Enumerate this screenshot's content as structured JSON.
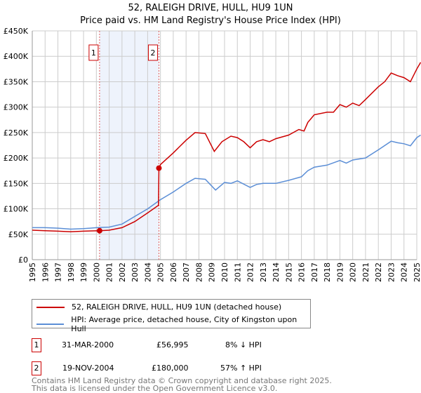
{
  "chart_data": {
    "type": "line",
    "title": "52, RALEIGH DRIVE, HULL, HU9 1UN",
    "subtitle": "Price paid vs. HM Land Registry's House Price Index (HPI)",
    "xlim": [
      1995,
      2025
    ],
    "ylim": [
      0,
      450000
    ],
    "x_ticks": [
      "1995",
      "1996",
      "1997",
      "1998",
      "1999",
      "2000",
      "2001",
      "2002",
      "2003",
      "2004",
      "2005",
      "2006",
      "2007",
      "2008",
      "2009",
      "2010",
      "2011",
      "2012",
      "2013",
      "2014",
      "2015",
      "2016",
      "2017",
      "2018",
      "2019",
      "2020",
      "2021",
      "2022",
      "2023",
      "2024",
      "2025"
    ],
    "y_ticks": [
      {
        "v": 0,
        "l": "£0"
      },
      {
        "v": 50000,
        "l": "£50K"
      },
      {
        "v": 100000,
        "l": "£100K"
      },
      {
        "v": 150000,
        "l": "£150K"
      },
      {
        "v": 200000,
        "l": "£200K"
      },
      {
        "v": 250000,
        "l": "£250K"
      },
      {
        "v": 300000,
        "l": "£300K"
      },
      {
        "v": 350000,
        "l": "£350K"
      },
      {
        "v": 400000,
        "l": "£400K"
      },
      {
        "v": 450000,
        "l": "£450K"
      }
    ],
    "grid": true,
    "shaded_range": [
      2000.25,
      2004.88
    ],
    "series": [
      {
        "name": "52, RALEIGH DRIVE, HULL, HU9 1UN (detached house)",
        "color": "#cc0000",
        "x": [
          1995,
          1996,
          1997,
          1998,
          1999,
          2000.25,
          2001,
          2002,
          2003,
          2004,
          2004.85,
          2004.88,
          2005,
          2006,
          2007,
          2007.7,
          2008.5,
          2009.2,
          2009.8,
          2010.5,
          2011,
          2011.5,
          2012,
          2012.5,
          2013,
          2013.5,
          2014,
          2015,
          2015.8,
          2016.2,
          2016.5,
          2017,
          2018,
          2018.5,
          2019,
          2019.5,
          2020,
          2020.5,
          2021,
          2022,
          2022.5,
          2023,
          2023.5,
          2024,
          2024.5,
          2025,
          2025.3
        ],
        "y": [
          58000,
          57000,
          56000,
          55000,
          56000,
          56995,
          58000,
          63000,
          75000,
          92000,
          107000,
          180000,
          187000,
          210000,
          235000,
          250000,
          248000,
          213000,
          232000,
          243000,
          240000,
          232000,
          220000,
          232000,
          236000,
          232000,
          238000,
          245000,
          256000,
          253000,
          270000,
          285000,
          290000,
          290000,
          305000,
          300000,
          308000,
          303000,
          315000,
          340000,
          350000,
          367000,
          362000,
          358000,
          350000,
          375000,
          388000
        ]
      },
      {
        "name": "HPI: Average price, detached house, City of Kingston upon Hull",
        "color": "#5b8ed6",
        "x": [
          1995,
          1996,
          1997,
          1998,
          1999,
          2000,
          2001,
          2002,
          2003,
          2004,
          2005,
          2006,
          2007,
          2007.7,
          2008.5,
          2009.3,
          2010,
          2010.5,
          2011,
          2012,
          2012.5,
          2013,
          2014,
          2015,
          2016,
          2016.5,
          2017,
          2018,
          2019,
          2019.5,
          2020,
          2021,
          2022,
          2023,
          2023.5,
          2024,
          2024.5,
          2025,
          2025.3
        ],
        "y": [
          63000,
          63000,
          62000,
          60000,
          61000,
          63000,
          64000,
          70000,
          85000,
          100000,
          118000,
          133000,
          150000,
          160000,
          158000,
          137000,
          152000,
          150000,
          155000,
          142000,
          148000,
          150000,
          150000,
          156000,
          163000,
          175000,
          182000,
          186000,
          195000,
          190000,
          196000,
          200000,
          216000,
          233000,
          230000,
          228000,
          224000,
          240000,
          245000
        ]
      }
    ],
    "markers": [
      {
        "label": "1",
        "x": 2000.25,
        "y": 56995
      },
      {
        "label": "2",
        "x": 2004.88,
        "y": 180000
      }
    ]
  },
  "legend": [
    "52, RALEIGH DRIVE, HULL, HU9 1UN (detached house)",
    "HPI: Average price, detached house, City of Kingston upon Hull"
  ],
  "transactions": [
    {
      "num": "1",
      "date": "31-MAR-2000",
      "price": "£56,995",
      "hpi": "8% ↓ HPI"
    },
    {
      "num": "2",
      "date": "19-NOV-2004",
      "price": "£180,000",
      "hpi": "57% ↑ HPI"
    }
  ],
  "footer": [
    "Contains HM Land Registry data © Crown copyright and database right 2025.",
    "This data is licensed under the Open Government Licence v3.0."
  ]
}
